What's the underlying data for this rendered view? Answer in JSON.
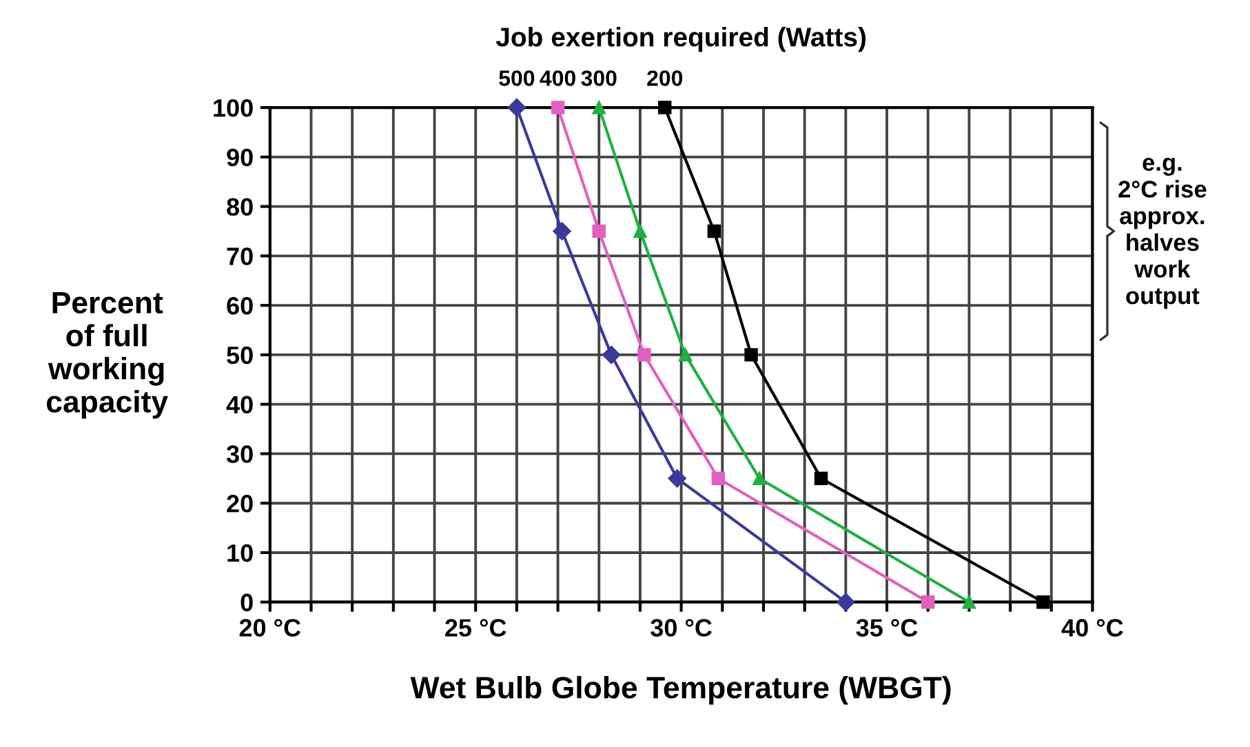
{
  "chart_data": {
    "type": "line",
    "title": "Job exertion required (Watts)",
    "xlabel": "Wet Bulb Globe Temperature (WBGT)",
    "ylabel": "Percent\nof full\nworking\ncapacity",
    "annotations": [
      "e.g.\n2°C rise\napprox.\nhalves\nwork\noutput"
    ],
    "series": [
      {
        "name": "500",
        "color": "#3a3a9c",
        "marker": "diamond",
        "x": [
          26,
          27.1,
          28.3,
          29.9,
          34
        ],
        "values": [
          100,
          75,
          50,
          25,
          0
        ]
      },
      {
        "name": "400",
        "color": "#e060c0",
        "marker": "square",
        "x": [
          27,
          28,
          29.1,
          30.9,
          36
        ],
        "values": [
          100,
          75,
          50,
          25,
          0
        ]
      },
      {
        "name": "300",
        "color": "#20b040",
        "marker": "triangle",
        "x": [
          28,
          29,
          30.1,
          31.9,
          37
        ],
        "values": [
          100,
          75,
          50,
          25,
          0
        ]
      },
      {
        "name": "200",
        "color": "#000000",
        "marker": "square",
        "x": [
          29.6,
          30.8,
          31.7,
          33.4,
          38.8
        ],
        "values": [
          100,
          75,
          50,
          25,
          0
        ]
      }
    ],
    "xlim": [
      20,
      40
    ],
    "ylim": [
      0,
      100
    ],
    "xticks": [
      {
        "value": 20,
        "label": "20 °C"
      },
      {
        "value": 21,
        "label": null
      },
      {
        "value": 22,
        "label": null
      },
      {
        "value": 23,
        "label": null
      },
      {
        "value": 24,
        "label": null
      },
      {
        "value": 25,
        "label": "25 °C"
      },
      {
        "value": 26,
        "label": null
      },
      {
        "value": 27,
        "label": null
      },
      {
        "value": 28,
        "label": null
      },
      {
        "value": 29,
        "label": null
      },
      {
        "value": 30,
        "label": "30 °C"
      },
      {
        "value": 31,
        "label": null
      },
      {
        "value": 32,
        "label": null
      },
      {
        "value": 33,
        "label": null
      },
      {
        "value": 34,
        "label": null
      },
      {
        "value": 35,
        "label": "35 °C"
      },
      {
        "value": 36,
        "label": null
      },
      {
        "value": 37,
        "label": null
      },
      {
        "value": 38,
        "label": null
      },
      {
        "value": 39,
        "label": null
      },
      {
        "value": 40,
        "label": "40 °C"
      }
    ],
    "yticks": [
      0,
      10,
      20,
      30,
      40,
      50,
      60,
      70,
      80,
      90,
      100
    ],
    "grid": true,
    "legend": false,
    "line_style": "solid"
  }
}
